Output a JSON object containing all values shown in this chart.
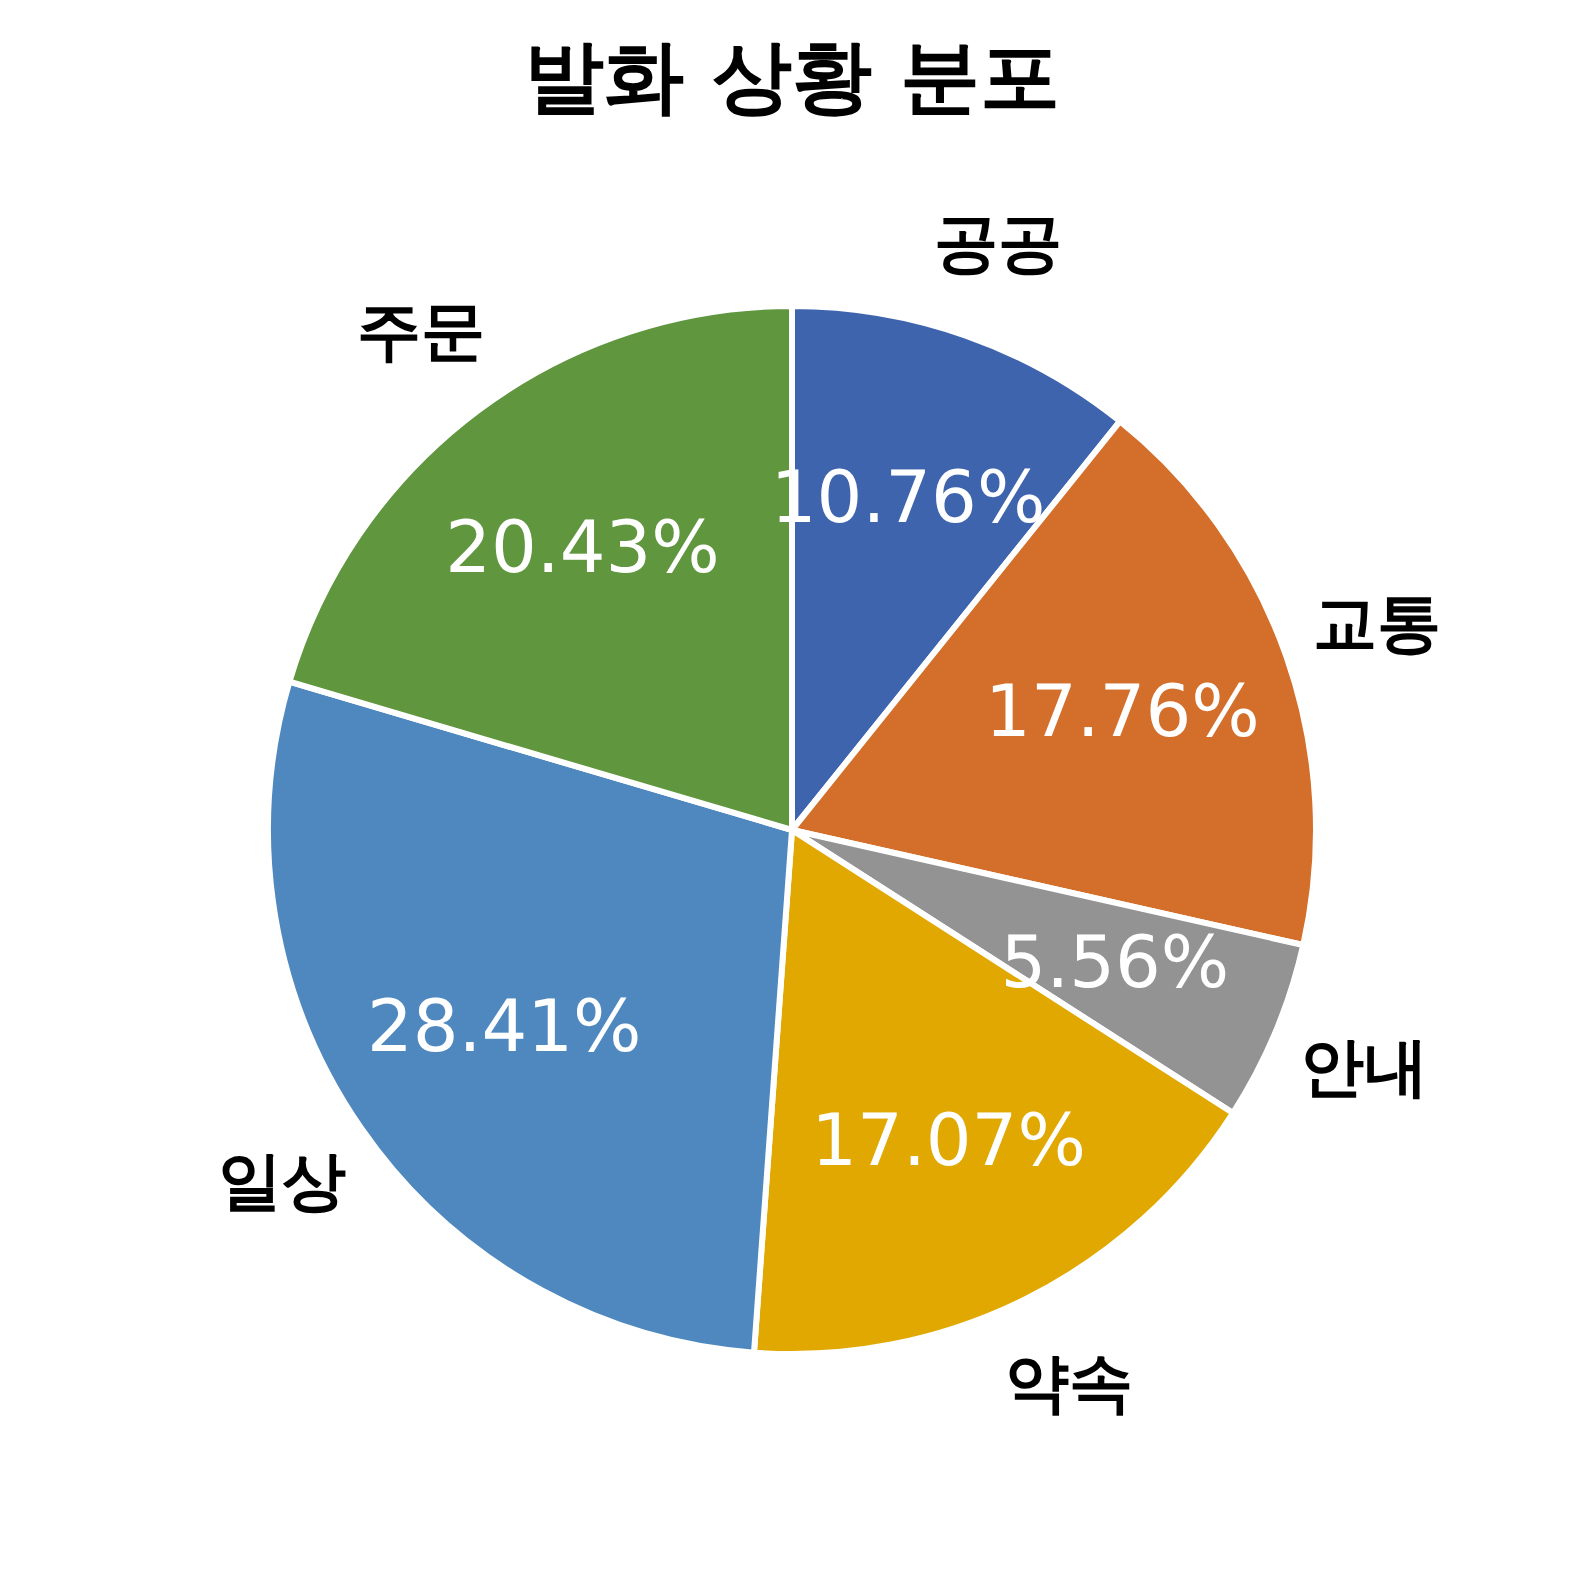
{
  "chart_data": {
    "type": "pie",
    "title": "발화 상황 분포",
    "categories": [
      "공공",
      "교통",
      "안내",
      "약속",
      "일상",
      "주문"
    ],
    "values": [
      10.76,
      17.76,
      5.56,
      17.07,
      28.41,
      20.43
    ],
    "value_labels": [
      "10.76%",
      "17.76%",
      "5.56%",
      "17.07%",
      "28.41%",
      "20.43%"
    ],
    "colors": [
      "#3f64ae",
      "#d36e2b",
      "#939393",
      "#e0a800",
      "#4f88bf",
      "#5f963e"
    ],
    "legend": false
  }
}
